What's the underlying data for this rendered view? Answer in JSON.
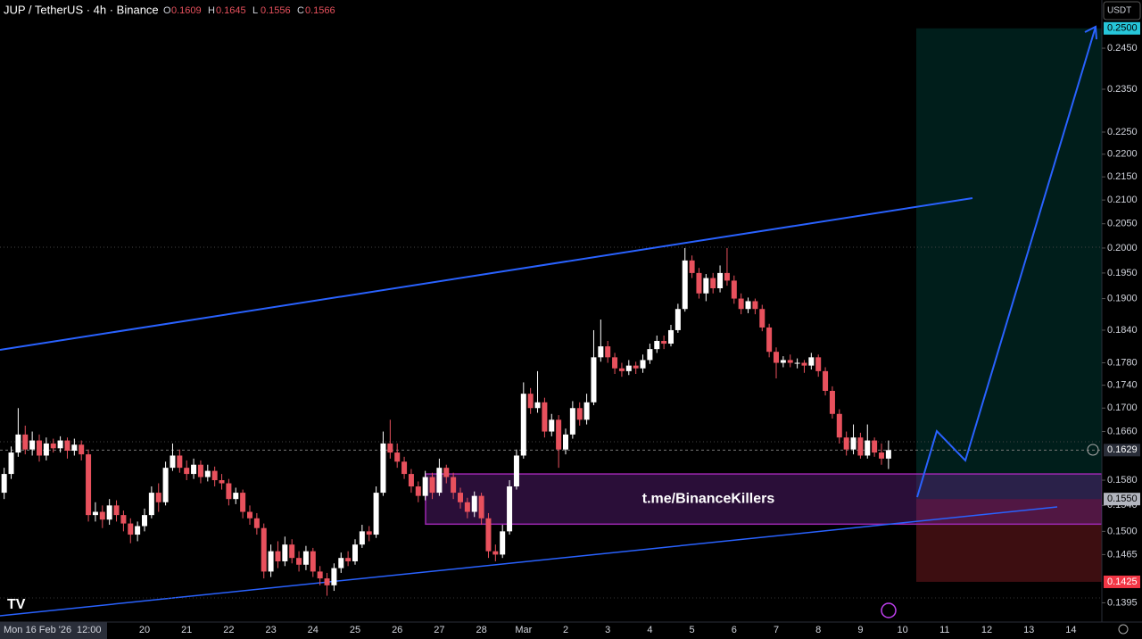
{
  "header": {
    "title": "JUP / TetherUS · 4h · Binance",
    "ohlc": [
      {
        "key": "O",
        "value": "0.1609"
      },
      {
        "key": "H",
        "value": "0.1645"
      },
      {
        "key": "L",
        "value": "0.1556"
      },
      {
        "key": "C",
        "value": "0.1566"
      }
    ]
  },
  "currency": "USDT",
  "price_axis": {
    "log": true,
    "ylim": [
      0.1368,
      0.2573
    ],
    "yticks": [
      {
        "value": 0.245,
        "label": "0.2450"
      },
      {
        "value": 0.235,
        "label": "0.2350"
      },
      {
        "value": 0.225,
        "label": "0.2250"
      },
      {
        "value": 0.22,
        "label": "0.2200"
      },
      {
        "value": 0.215,
        "label": "0.2150"
      },
      {
        "value": 0.21,
        "label": "0.2100"
      },
      {
        "value": 0.205,
        "label": "0.2050"
      },
      {
        "value": 0.2,
        "label": "0.2000"
      },
      {
        "value": 0.195,
        "label": "0.1950"
      },
      {
        "value": 0.19,
        "label": "0.1900"
      },
      {
        "value": 0.184,
        "label": "0.1840"
      },
      {
        "value": 0.178,
        "label": "0.1780"
      },
      {
        "value": 0.174,
        "label": "0.1740"
      },
      {
        "value": 0.17,
        "label": "0.1700"
      },
      {
        "value": 0.166,
        "label": "0.1660"
      },
      {
        "value": 0.158,
        "label": "0.1580"
      },
      {
        "value": 0.154,
        "label": "0.1540"
      },
      {
        "value": 0.15,
        "label": "0.1500"
      },
      {
        "value": 0.1465,
        "label": "0.1465"
      },
      {
        "value": 0.1395,
        "label": "0.1395"
      }
    ]
  },
  "time_axis": {
    "cursor_date": "Mon 16 Feb '26",
    "cursor_time": "12:00",
    "days": [
      "20",
      "21",
      "22",
      "23",
      "24",
      "25",
      "26",
      "27",
      "28",
      "Mar",
      "2",
      "3",
      "4",
      "5",
      "6",
      "7",
      "8",
      "9",
      "10",
      "11",
      "12",
      "13",
      "14"
    ]
  },
  "candle_colors": {
    "up": "#ffffff",
    "down": "#e8515d"
  },
  "candles": [
    [
      0.156,
      0.16,
      0.155,
      0.159
    ],
    [
      0.159,
      0.1635,
      0.1582,
      0.1625
    ],
    [
      0.1625,
      0.17,
      0.1618,
      0.1655
    ],
    [
      0.1655,
      0.167,
      0.1622,
      0.163
    ],
    [
      0.163,
      0.166,
      0.162,
      0.1645
    ],
    [
      0.1645,
      0.1655,
      0.161,
      0.162
    ],
    [
      0.162,
      0.165,
      0.1612,
      0.164
    ],
    [
      0.164,
      0.1648,
      0.1625,
      0.1632
    ],
    [
      0.1632,
      0.1652,
      0.1625,
      0.1645
    ],
    [
      0.1645,
      0.165,
      0.1615,
      0.1628
    ],
    [
      0.1628,
      0.1648,
      0.162,
      0.1638
    ],
    [
      0.1638,
      0.1645,
      0.1612,
      0.1622
    ],
    [
      0.1622,
      0.163,
      0.1515,
      0.1525
    ],
    [
      0.1525,
      0.1545,
      0.1515,
      0.153
    ],
    [
      0.153,
      0.154,
      0.1505,
      0.1518
    ],
    [
      0.1518,
      0.155,
      0.151,
      0.154
    ],
    [
      0.154,
      0.1548,
      0.1515,
      0.1525
    ],
    [
      0.1525,
      0.1532,
      0.15,
      0.1512
    ],
    [
      0.1512,
      0.152,
      0.1482,
      0.1495
    ],
    [
      0.1495,
      0.1515,
      0.1485,
      0.1508
    ],
    [
      0.1508,
      0.1535,
      0.15,
      0.1525
    ],
    [
      0.1525,
      0.157,
      0.152,
      0.156
    ],
    [
      0.156,
      0.1575,
      0.153,
      0.1545
    ],
    [
      0.1545,
      0.161,
      0.154,
      0.16
    ],
    [
      0.16,
      0.164,
      0.1595,
      0.162
    ],
    [
      0.162,
      0.163,
      0.1592,
      0.16
    ],
    [
      0.16,
      0.1612,
      0.158,
      0.159
    ],
    [
      0.159,
      0.1615,
      0.1582,
      0.1605
    ],
    [
      0.1605,
      0.1612,
      0.1575,
      0.1585
    ],
    [
      0.1585,
      0.1605,
      0.1578,
      0.1595
    ],
    [
      0.1595,
      0.1602,
      0.157,
      0.158
    ],
    [
      0.158,
      0.159,
      0.1565,
      0.1575
    ],
    [
      0.1575,
      0.1582,
      0.154,
      0.155
    ],
    [
      0.155,
      0.1568,
      0.1542,
      0.156
    ],
    [
      0.156,
      0.1565,
      0.152,
      0.153
    ],
    [
      0.153,
      0.154,
      0.151,
      0.152
    ],
    [
      0.152,
      0.1528,
      0.1495,
      0.1505
    ],
    [
      0.1505,
      0.1512,
      0.143,
      0.144
    ],
    [
      0.144,
      0.148,
      0.1432,
      0.147
    ],
    [
      0.147,
      0.1485,
      0.1445,
      0.1455
    ],
    [
      0.1455,
      0.1492,
      0.1448,
      0.148
    ],
    [
      0.148,
      0.1488,
      0.1452,
      0.146
    ],
    [
      0.146,
      0.147,
      0.144,
      0.145
    ],
    [
      0.145,
      0.1478,
      0.1442,
      0.147
    ],
    [
      0.147,
      0.1475,
      0.1432,
      0.144
    ],
    [
      0.144,
      0.1448,
      0.142,
      0.143
    ],
    [
      0.143,
      0.1438,
      0.1405,
      0.142
    ],
    [
      0.142,
      0.1452,
      0.1412,
      0.1445
    ],
    [
      0.1445,
      0.1468,
      0.1438,
      0.146
    ],
    [
      0.146,
      0.147,
      0.1448,
      0.1455
    ],
    [
      0.1455,
      0.1488,
      0.145,
      0.148
    ],
    [
      0.148,
      0.151,
      0.1475,
      0.15
    ],
    [
      0.15,
      0.1508,
      0.1485,
      0.1495
    ],
    [
      0.1495,
      0.157,
      0.149,
      0.156
    ],
    [
      0.156,
      0.166,
      0.1555,
      0.164
    ],
    [
      0.164,
      0.168,
      0.1615,
      0.1625
    ],
    [
      0.1625,
      0.164,
      0.16,
      0.161
    ],
    [
      0.161,
      0.1618,
      0.1582,
      0.159
    ],
    [
      0.159,
      0.1598,
      0.156,
      0.157
    ],
    [
      0.157,
      0.1578,
      0.1545,
      0.1555
    ],
    [
      0.1555,
      0.1595,
      0.1548,
      0.1585
    ],
    [
      0.1585,
      0.1592,
      0.155,
      0.156
    ],
    [
      0.156,
      0.1615,
      0.1555,
      0.16
    ],
    [
      0.16,
      0.1605,
      0.1575,
      0.1585
    ],
    [
      0.1585,
      0.1592,
      0.155,
      0.156
    ],
    [
      0.156,
      0.1568,
      0.1535,
      0.1545
    ],
    [
      0.1545,
      0.1552,
      0.152,
      0.153
    ],
    [
      0.153,
      0.1562,
      0.1522,
      0.1555
    ],
    [
      0.1555,
      0.156,
      0.151,
      0.152
    ],
    [
      0.152,
      0.1528,
      0.146,
      0.147
    ],
    [
      0.147,
      0.148,
      0.1455,
      0.1465
    ],
    [
      0.1465,
      0.151,
      0.146,
      0.15
    ],
    [
      0.15,
      0.158,
      0.1495,
      0.157
    ],
    [
      0.157,
      0.163,
      0.1565,
      0.162
    ],
    [
      0.162,
      0.1745,
      0.1615,
      0.1725
    ],
    [
      0.1725,
      0.1735,
      0.169,
      0.17
    ],
    [
      0.17,
      0.1765,
      0.1692,
      0.171
    ],
    [
      0.171,
      0.1718,
      0.165,
      0.166
    ],
    [
      0.166,
      0.169,
      0.1652,
      0.168
    ],
    [
      0.168,
      0.1688,
      0.16,
      0.163
    ],
    [
      0.163,
      0.1665,
      0.1622,
      0.1655
    ],
    [
      0.1655,
      0.1712,
      0.1648,
      0.17
    ],
    [
      0.17,
      0.171,
      0.167,
      0.168
    ],
    [
      0.168,
      0.1725,
      0.1672,
      0.171
    ],
    [
      0.171,
      0.184,
      0.1705,
      0.179
    ],
    [
      0.179,
      0.186,
      0.1782,
      0.181
    ],
    [
      0.181,
      0.182,
      0.178,
      0.179
    ],
    [
      0.179,
      0.1798,
      0.176,
      0.177
    ],
    [
      0.177,
      0.178,
      0.1755,
      0.1765
    ],
    [
      0.1765,
      0.1785,
      0.1758,
      0.1775
    ],
    [
      0.1775,
      0.1782,
      0.176,
      0.177
    ],
    [
      0.177,
      0.1795,
      0.1762,
      0.1785
    ],
    [
      0.1785,
      0.1815,
      0.1778,
      0.1805
    ],
    [
      0.1805,
      0.183,
      0.1798,
      0.182
    ],
    [
      0.182,
      0.183,
      0.1805,
      0.1815
    ],
    [
      0.1815,
      0.185,
      0.181,
      0.184
    ],
    [
      0.184,
      0.189,
      0.1835,
      0.188
    ],
    [
      0.188,
      0.2,
      0.1875,
      0.1975
    ],
    [
      0.1975,
      0.1985,
      0.194,
      0.195
    ],
    [
      0.195,
      0.196,
      0.19,
      0.191
    ],
    [
      0.191,
      0.1948,
      0.1895,
      0.194
    ],
    [
      0.194,
      0.195,
      0.191,
      0.192
    ],
    [
      0.192,
      0.1965,
      0.1912,
      0.195
    ],
    [
      0.195,
      0.2,
      0.1925,
      0.1935
    ],
    [
      0.1935,
      0.1945,
      0.189,
      0.19
    ],
    [
      0.19,
      0.191,
      0.187,
      0.188
    ],
    [
      0.188,
      0.1902,
      0.1872,
      0.1895
    ],
    [
      0.1895,
      0.19,
      0.187,
      0.188
    ],
    [
      0.188,
      0.1888,
      0.1838,
      0.1845
    ],
    [
      0.1845,
      0.1852,
      0.179,
      0.18
    ],
    [
      0.18,
      0.1808,
      0.1752,
      0.178
    ],
    [
      0.178,
      0.1792,
      0.1772,
      0.1785
    ],
    [
      0.1785,
      0.1795,
      0.1772,
      0.178
    ],
    [
      0.178,
      0.1788,
      0.177,
      0.178
    ],
    [
      0.178,
      0.1785,
      0.1762,
      0.1775
    ],
    [
      0.1775,
      0.1798,
      0.1768,
      0.179
    ],
    [
      0.179,
      0.1795,
      0.1755,
      0.1765
    ],
    [
      0.1765,
      0.1772,
      0.1722,
      0.173
    ],
    [
      0.173,
      0.1738,
      0.1682,
      0.169
    ],
    [
      0.169,
      0.1698,
      0.164,
      0.165
    ],
    [
      0.165,
      0.166,
      0.162,
      0.163
    ],
    [
      0.163,
      0.1672,
      0.1622,
      0.165
    ],
    [
      0.165,
      0.1658,
      0.1615,
      0.162
    ],
    [
      0.162,
      0.1672,
      0.1615,
      0.1645
    ],
    [
      0.1645,
      0.165,
      0.1618,
      0.1625
    ],
    [
      0.1625,
      0.164,
      0.1605,
      0.1615
    ],
    [
      0.1615,
      0.1645,
      0.1598,
      0.1629
    ]
  ],
  "last_price": {
    "value": 0.1629,
    "label": "0.1629"
  },
  "position": {
    "target": {
      "value": 0.25,
      "label": "0.2500"
    },
    "entry": {
      "value": 0.155,
      "label": "0.1550"
    },
    "stop": {
      "value": 0.1425,
      "label": "0.1425"
    }
  },
  "zone": {
    "label": "t.me/BinanceKillers",
    "top": 0.159,
    "bottom": 0.1511
  }
}
